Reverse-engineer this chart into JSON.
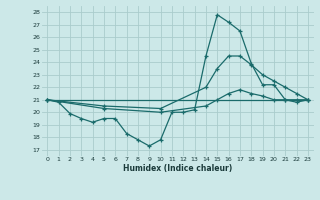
{
  "xlabel": "Humidex (Indice chaleur)",
  "xlim": [
    -0.5,
    23.5
  ],
  "ylim": [
    16.5,
    28.5
  ],
  "yticks": [
    17,
    18,
    19,
    20,
    21,
    22,
    23,
    24,
    25,
    26,
    27,
    28
  ],
  "xticks": [
    0,
    1,
    2,
    3,
    4,
    5,
    6,
    7,
    8,
    9,
    10,
    11,
    12,
    13,
    14,
    15,
    16,
    17,
    18,
    19,
    20,
    21,
    22,
    23
  ],
  "bg_color": "#cce8e8",
  "grid_color": "#aacccc",
  "line_color": "#1a6b6b",
  "line1_x": [
    0,
    1,
    2,
    3,
    4,
    5,
    6,
    7,
    8,
    9,
    10,
    11,
    12,
    13,
    14,
    15,
    16,
    17,
    18,
    19,
    20,
    21,
    22,
    23
  ],
  "line1_y": [
    21.0,
    20.8,
    19.9,
    19.5,
    19.2,
    19.5,
    19.5,
    18.3,
    17.8,
    17.3,
    17.8,
    20.0,
    20.0,
    20.2,
    24.5,
    27.8,
    27.2,
    26.5,
    23.9,
    22.2,
    22.2,
    21.0,
    21.0,
    21.0
  ],
  "line2_x": [
    0,
    23
  ],
  "line2_y": [
    21.0,
    21.0
  ],
  "line3_x": [
    0,
    5,
    10,
    14,
    15,
    16,
    17,
    18,
    19,
    20,
    21,
    22,
    23
  ],
  "line3_y": [
    21.0,
    20.5,
    20.3,
    22.0,
    23.5,
    24.5,
    24.5,
    23.8,
    23.0,
    22.5,
    22.0,
    21.5,
    21.0
  ],
  "line4_x": [
    0,
    5,
    10,
    14,
    15,
    16,
    17,
    18,
    19,
    20,
    21,
    22,
    23
  ],
  "line4_y": [
    21.0,
    20.3,
    20.0,
    20.5,
    21.0,
    21.5,
    21.8,
    21.5,
    21.3,
    21.0,
    21.0,
    20.8,
    21.0
  ]
}
